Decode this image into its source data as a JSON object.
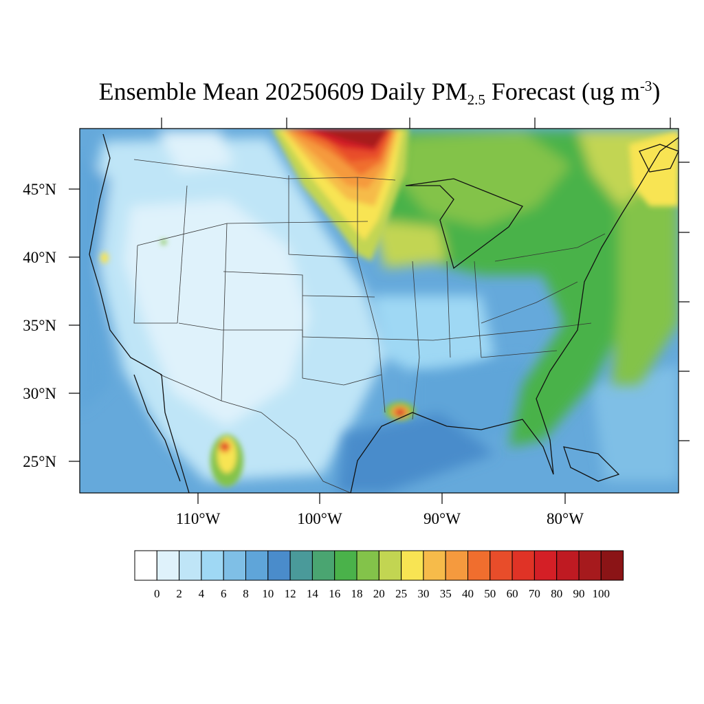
{
  "title": {
    "prefix": "Ensemble Mean 20250609 Daily PM",
    "sub": "2.5",
    "middle": " Forecast (ug m",
    "sup": "-3",
    "suffix": ")"
  },
  "map": {
    "projection": "Lambert conformal (CONUS)",
    "lon_labels": [
      "110°W",
      "100°W",
      "90°W",
      "80°W"
    ],
    "lat_labels": [
      "45°N",
      "40°N",
      "35°N",
      "30°N",
      "25°N"
    ],
    "base_color": "#65a9db",
    "features": [
      {
        "name": "west-clean-zone",
        "level": "2-6"
      },
      {
        "name": "smoke-plume-north-plains",
        "level": "30-100"
      },
      {
        "name": "great-lakes-green-band",
        "level": "16-25"
      },
      {
        "name": "atlantic-maritime-plume",
        "level": "20-35"
      },
      {
        "name": "louisiana-hotspot",
        "level": "60-100"
      },
      {
        "name": "sinaloa-hotspot",
        "level": "30-90"
      },
      {
        "name": "california-hotspot",
        "level": "25-40"
      }
    ]
  },
  "colorbar": {
    "labels": [
      "0",
      "2",
      "4",
      "6",
      "8",
      "10",
      "12",
      "14",
      "16",
      "18",
      "20",
      "25",
      "30",
      "35",
      "40",
      "50",
      "60",
      "70",
      "80",
      "90",
      "100"
    ],
    "colors": [
      "#ffffff",
      "#dff2fb",
      "#bfe5f7",
      "#9fd8f4",
      "#7fbfe6",
      "#5fa5d9",
      "#4a8ccb",
      "#4a9a9a",
      "#4aa571",
      "#4ab24a",
      "#83c34a",
      "#c2d552",
      "#f8e453",
      "#f6bb4a",
      "#f59a3e",
      "#f06e2e",
      "#e84d2a",
      "#e03326",
      "#d41f26",
      "#bf1a22",
      "#a61a1d",
      "#8b1416"
    ]
  }
}
